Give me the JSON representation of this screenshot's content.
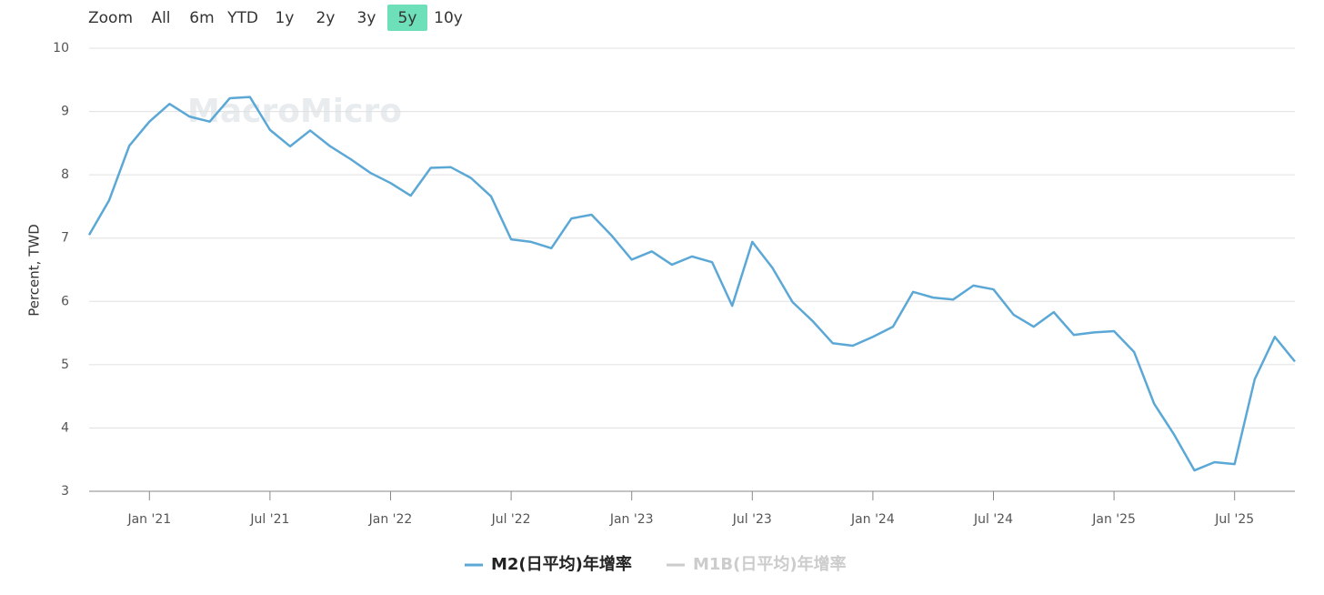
{
  "zoom": {
    "label": "Zoom",
    "buttons": [
      "All",
      "6m",
      "YTD",
      "1y",
      "2y",
      "3y",
      "5y",
      "10y"
    ],
    "selected": "5y"
  },
  "chart_data": {
    "type": "line",
    "watermark": "MacroMicro",
    "y_label": "Percent, TWD",
    "categories": [
      null,
      null,
      null,
      "Jan '21",
      null,
      null,
      null,
      null,
      null,
      "Jul '21",
      null,
      null,
      null,
      null,
      null,
      "Jan '22",
      null,
      null,
      null,
      null,
      null,
      "Jul '22",
      null,
      null,
      null,
      null,
      null,
      "Jan '23",
      null,
      null,
      null,
      null,
      null,
      "Jul '23",
      null,
      null,
      null,
      null,
      null,
      "Jan '24",
      null,
      null,
      null,
      null,
      null,
      "Jul '24",
      null,
      null,
      null,
      null,
      null,
      "Jan '25",
      null,
      null,
      null,
      null,
      null,
      "Jul '25",
      null,
      null,
      null
    ],
    "series": [
      {
        "name": "M2(日平均)年增率",
        "color": "#5ba8d6",
        "values": [
          7.05,
          7.6,
          8.46,
          8.84,
          9.12,
          8.92,
          8.84,
          9.21,
          9.23,
          8.71,
          8.45,
          8.7,
          8.45,
          8.25,
          8.03,
          7.87,
          7.67,
          8.11,
          8.12,
          7.95,
          7.66,
          6.98,
          6.94,
          6.84,
          7.31,
          7.37,
          7.04,
          6.66,
          6.79,
          6.58,
          6.71,
          6.62,
          5.93,
          6.94,
          6.53,
          5.99,
          5.69,
          5.34,
          5.3,
          5.44,
          5.6,
          6.15,
          6.06,
          6.03,
          6.25,
          6.19,
          5.79,
          5.6,
          5.83,
          5.47,
          5.51,
          5.53,
          5.2,
          4.38,
          3.89,
          3.33,
          3.46,
          3.43,
          4.77,
          5.44,
          5.05
        ]
      }
    ],
    "inactive_legend": [
      {
        "name": "M1B(日平均)年增率",
        "color": "#cccccc"
      }
    ],
    "ylim": [
      3,
      10
    ],
    "yticks": [
      3,
      4,
      5,
      6,
      7,
      8,
      9,
      10
    ],
    "grid": true
  }
}
